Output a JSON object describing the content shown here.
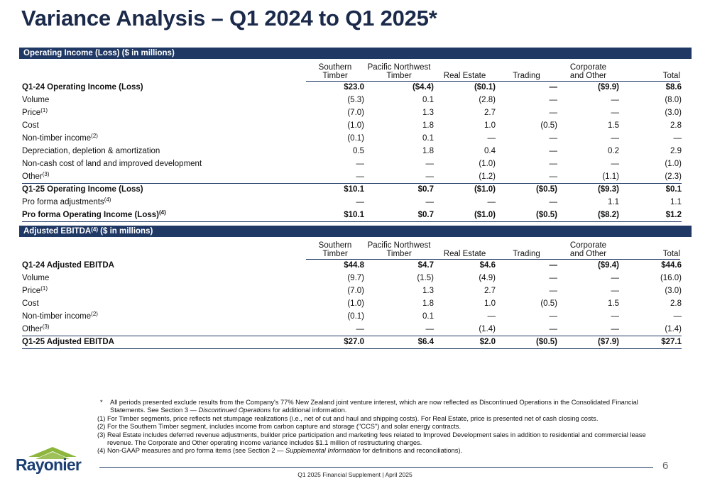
{
  "title": "Variance Analysis – Q1 2024 to Q1 2025*",
  "columns": [
    {
      "line1": "Southern",
      "line2": "Timber"
    },
    {
      "line1": "Pacific Northwest",
      "line2": "Timber"
    },
    {
      "line1": "",
      "line2": "Real Estate"
    },
    {
      "line1": "",
      "line2": "Trading"
    },
    {
      "line1": "Corporate",
      "line2": "and Other"
    },
    {
      "line1": "",
      "line2": "Total"
    }
  ],
  "section1": {
    "title": "Operating Income (Loss) ($ in millions)",
    "rows": [
      {
        "label": "Q1-24 Operating Income (Loss)",
        "sup": "",
        "values": [
          "$23.0",
          "($4.4)",
          "($0.1)",
          "—",
          "($9.9)",
          "$8.6"
        ]
      },
      {
        "label": "Volume",
        "sup": "",
        "values": [
          "(5.3)",
          "0.1",
          "(2.8)",
          "—",
          "—",
          "(8.0)"
        ]
      },
      {
        "label": "Price",
        "sup": "(1)",
        "values": [
          "(7.0)",
          "1.3",
          "2.7",
          "—",
          "—",
          "(3.0)"
        ]
      },
      {
        "label": "Cost",
        "sup": "",
        "values": [
          "(1.0)",
          "1.8",
          "1.0",
          "(0.5)",
          "1.5",
          "2.8"
        ]
      },
      {
        "label": "Non-timber income",
        "sup": "(2)",
        "values": [
          "(0.1)",
          "0.1",
          "—",
          "—",
          "—",
          "—"
        ]
      },
      {
        "label": "Depreciation, depletion & amortization",
        "sup": "",
        "values": [
          "0.5",
          "1.8",
          "0.4",
          "—",
          "0.2",
          "2.9"
        ]
      },
      {
        "label": "Non-cash cost of land and improved development",
        "sup": "",
        "values": [
          "—",
          "—",
          "(1.0)",
          "—",
          "—",
          "(1.0)"
        ]
      },
      {
        "label": "Other",
        "sup": "(3)",
        "values": [
          "—",
          "—",
          "(1.2)",
          "—",
          "(1.1)",
          "(2.3)"
        ]
      },
      {
        "label": "Q1-25 Operating Income (Loss)",
        "sup": "",
        "values": [
          "$10.1",
          "$0.7",
          "($1.0)",
          "($0.5)",
          "($9.3)",
          "$0.1"
        ]
      },
      {
        "label": "Pro forma adjustments",
        "sup": "(4)",
        "values": [
          "—",
          "—",
          "—",
          "—",
          "1.1",
          "1.1"
        ]
      },
      {
        "label": "Pro forma Operating Income (Loss)",
        "sup": "(4)",
        "values": [
          "$10.1",
          "$0.7",
          "($1.0)",
          "($0.5)",
          "($8.2)",
          "$1.2"
        ]
      }
    ]
  },
  "section2": {
    "title_pre": "Adjusted EBITDA",
    "title_sup": "(4)",
    "title_post": " ($ in millions)",
    "rows": [
      {
        "label": "Q1-24 Adjusted EBITDA",
        "sup": "",
        "values": [
          "$44.8",
          "$4.7",
          "$4.6",
          "—",
          "($9.4)",
          "$44.6"
        ]
      },
      {
        "label": "Volume",
        "sup": "",
        "values": [
          "(9.7)",
          "(1.5)",
          "(4.9)",
          "—",
          "—",
          "(16.0)"
        ]
      },
      {
        "label": "Price",
        "sup": "(1)",
        "values": [
          "(7.0)",
          "1.3",
          "2.7",
          "—",
          "—",
          "(3.0)"
        ]
      },
      {
        "label": "Cost",
        "sup": "",
        "values": [
          "(1.0)",
          "1.8",
          "1.0",
          "(0.5)",
          "1.5",
          "2.8"
        ]
      },
      {
        "label": "Non-timber income",
        "sup": "(2)",
        "values": [
          "(0.1)",
          "0.1",
          "—",
          "—",
          "—",
          "—"
        ]
      },
      {
        "label": "Other",
        "sup": "(3)",
        "values": [
          "—",
          "—",
          "(1.4)",
          "—",
          "—",
          "(1.4)"
        ]
      },
      {
        "label": "Q1-25 Adjusted EBITDA",
        "sup": "",
        "values": [
          "$27.0",
          "$6.4",
          "$2.0",
          "($0.5)",
          "($7.9)",
          "$27.1"
        ]
      }
    ]
  },
  "footnotes": {
    "star_mark": "*",
    "star_a": "All periods presented exclude results from the Company's 77% New Zealand joint venture interest, which are now reflected as Discontinued Operations in the Consolidated Financial Statements. See Section 3 — ",
    "star_b": "Discontinued Operations",
    "star_c": " for additional information.",
    "fn1_mark": "(1)",
    "fn1": "For Timber segments, price reflects net stumpage realizations (i.e., net of cut and haul and shipping costs). For Real Estate, price is presented net of cash closing costs.",
    "fn2_mark": "(2)",
    "fn2": "For the Southern Timber segment, includes income from carbon capture and storage (\"CCS\") and solar energy contracts.",
    "fn3_mark": "(3)",
    "fn3": "Real Estate includes deferred revenue adjustments, builder price participation and marketing fees related to Improved Development sales in addition to residential and commercial lease revenue. The Corporate and Other operating income variance includes $1.1 million of restructuring charges.",
    "fn4_mark": "(4)",
    "fn4_a": "Non-GAAP measures and pro forma items (see Section 2 — ",
    "fn4_b": "Supplemental Information",
    "fn4_c": " for definitions and reconciliations)."
  },
  "logo": {
    "text": "Rayonier",
    "icon": "mountain-logo-icon"
  },
  "page_number": "6",
  "footer": "Q1 2025 Financial Supplement | April 2025",
  "colors": {
    "navy": "#1f3864",
    "title": "#1b2a4a",
    "logo_green": "#8db63c"
  }
}
